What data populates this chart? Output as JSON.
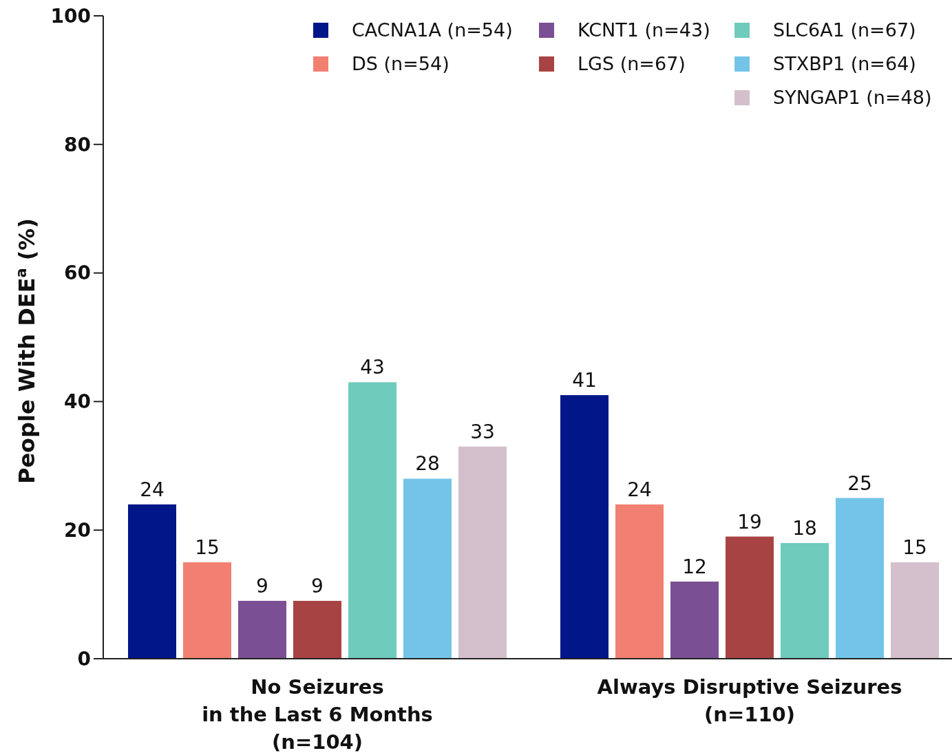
{
  "chart_data": {
    "type": "bar",
    "ylabel": "People With DEE$^{a}$ (%)",
    "categories": [
      "No Seizures\nin the Last 6 Months\n(n=104)",
      "Always Disruptive Seizures\n(n=110)"
    ],
    "series": [
      {
        "name": "CACNA1A (n=54)",
        "color": "#001689",
        "values": [
          24,
          41
        ]
      },
      {
        "name": "DS (n=54)",
        "color": "#f28072",
        "values": [
          15,
          24
        ]
      },
      {
        "name": "KCNT1 (n=43)",
        "color": "#7b4f93",
        "values": [
          9,
          12
        ]
      },
      {
        "name": "LGS (n=67)",
        "color": "#a84343",
        "values": [
          9,
          19
        ]
      },
      {
        "name": "SLC6A1 (n=67)",
        "color": "#6fcbbb",
        "values": [
          43,
          18
        ]
      },
      {
        "name": "STXBP1 (n=64)",
        "color": "#73c4e8",
        "values": [
          28,
          25
        ]
      },
      {
        "name": "SYNGAP1 (n=48)",
        "color": "#d3c0cc",
        "values": [
          33,
          15
        ]
      }
    ],
    "ylim": [
      0,
      100
    ],
    "yticks": [
      0,
      20,
      40,
      60,
      80,
      100
    ],
    "grid": false,
    "legend": "top right",
    "data_labels": true
  }
}
